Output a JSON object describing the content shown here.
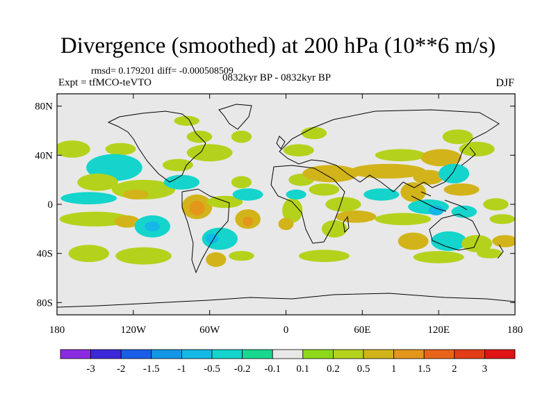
{
  "header": {
    "title": "Divergence (smoothed) at 200 hPa (10**6 m/s)",
    "stats": "rmsd= 0.179201 diff= -0.000508509",
    "experiment": "Expt = tfMCO-teVTO",
    "period": "0832kyr BP - 0832kyr BP",
    "season": "DJF"
  },
  "chart_data": {
    "type": "heatmap",
    "title": "Divergence (smoothed) at 200 hPa (10**6 m/s)",
    "xlabel": "",
    "ylabel": "",
    "xlim": [
      -180,
      180
    ],
    "ylim": [
      -90,
      90
    ],
    "x_ticks": [
      {
        "value": -180,
        "label": "180"
      },
      {
        "value": -120,
        "label": "120W"
      },
      {
        "value": -60,
        "label": "60W"
      },
      {
        "value": 0,
        "label": "0"
      },
      {
        "value": 60,
        "label": "60E"
      },
      {
        "value": 120,
        "label": "120E"
      },
      {
        "value": 180,
        "label": "180"
      }
    ],
    "y_ticks": [
      {
        "value": 80,
        "label": "80N"
      },
      {
        "value": 40,
        "label": "40N"
      },
      {
        "value": 0,
        "label": "0"
      },
      {
        "value": -40,
        "label": "40S"
      },
      {
        "value": -80,
        "label": "80S"
      }
    ],
    "colorbar": {
      "levels": [
        "-3",
        "-2",
        "-1.5",
        "-1",
        "-0.5",
        "-0.2",
        "-0.1",
        "0.1",
        "0.2",
        "0.5",
        "1",
        "1.5",
        "2",
        "3"
      ],
      "colors": [
        "#8a2be2",
        "#3c28d8",
        "#1a5ee8",
        "#1296e6",
        "#14b8e6",
        "#14d4cc",
        "#18d890",
        "#e8e8e8",
        "#8ed81c",
        "#b4d21c",
        "#d2b41a",
        "#e4961a",
        "#e8641a",
        "#e43c18",
        "#e01414"
      ]
    },
    "background_color": "#e8e8e8",
    "regions": [
      {
        "lon": -168,
        "lat": 45,
        "rx": 14,
        "ry": 7,
        "value": 0.2
      },
      {
        "lon": -130,
        "lat": 45,
        "rx": 12,
        "ry": 5,
        "value": 0.2
      },
      {
        "lon": -135,
        "lat": 30,
        "rx": 22,
        "ry": 11,
        "value": -0.5
      },
      {
        "lon": -148,
        "lat": 18,
        "rx": 16,
        "ry": 7,
        "value": 0.2
      },
      {
        "lon": -112,
        "lat": 12,
        "rx": 25,
        "ry": 8,
        "value": 0.2
      },
      {
        "lon": -118,
        "lat": 8,
        "rx": 10,
        "ry": 4,
        "value": 0.5
      },
      {
        "lon": -155,
        "lat": 5,
        "rx": 22,
        "ry": 5,
        "value": -0.5
      },
      {
        "lon": -150,
        "lat": -12,
        "rx": 28,
        "ry": 6,
        "value": 0.2
      },
      {
        "lon": -125,
        "lat": -14,
        "rx": 10,
        "ry": 5,
        "value": 0.5
      },
      {
        "lon": -105,
        "lat": -18,
        "rx": 14,
        "ry": 9,
        "value": -0.5
      },
      {
        "lon": -105,
        "lat": -18,
        "rx": 6,
        "ry": 4,
        "value": -1
      },
      {
        "lon": -155,
        "lat": -40,
        "rx": 16,
        "ry": 7,
        "value": 0.2
      },
      {
        "lon": -112,
        "lat": -42,
        "rx": 22,
        "ry": 7,
        "value": 0.2
      },
      {
        "lon": -70,
        "lat": -2,
        "rx": 12,
        "ry": 10,
        "value": 0.5
      },
      {
        "lon": -70,
        "lat": -3,
        "rx": 6,
        "ry": 6,
        "value": 1
      },
      {
        "lon": -82,
        "lat": 18,
        "rx": 14,
        "ry": 6,
        "value": -0.5
      },
      {
        "lon": -85,
        "lat": 32,
        "rx": 12,
        "ry": 5,
        "value": 0.2
      },
      {
        "lon": -60,
        "lat": 42,
        "rx": 18,
        "ry": 7,
        "value": 0.2
      },
      {
        "lon": -68,
        "lat": 55,
        "rx": 10,
        "ry": 5,
        "value": 0.2
      },
      {
        "lon": -35,
        "lat": 55,
        "rx": 8,
        "ry": 5,
        "value": 0.2
      },
      {
        "lon": -78,
        "lat": 68,
        "rx": 10,
        "ry": 4,
        "value": 0.2
      },
      {
        "lon": -48,
        "lat": 2,
        "rx": 14,
        "ry": 5,
        "value": 0.2
      },
      {
        "lon": -30,
        "lat": 8,
        "rx": 12,
        "ry": 5,
        "value": -0.5
      },
      {
        "lon": -30,
        "lat": -12,
        "rx": 10,
        "ry": 8,
        "value": 0.5
      },
      {
        "lon": -30,
        "lat": -14,
        "rx": 4,
        "ry": 4,
        "value": 1
      },
      {
        "lon": -52,
        "lat": -28,
        "rx": 14,
        "ry": 9,
        "value": -0.5
      },
      {
        "lon": -58,
        "lat": -28,
        "rx": 5,
        "ry": 4,
        "value": -1
      },
      {
        "lon": -55,
        "lat": -45,
        "rx": 8,
        "ry": 6,
        "value": 0.5
      },
      {
        "lon": -35,
        "lat": -42,
        "rx": 10,
        "ry": 4,
        "value": 0.2
      },
      {
        "lon": -35,
        "lat": 18,
        "rx": 8,
        "ry": 5,
        "value": 0.2
      },
      {
        "lon": 5,
        "lat": -5,
        "rx": 8,
        "ry": 10,
        "value": 0.2
      },
      {
        "lon": 0,
        "lat": -16,
        "rx": 6,
        "ry": 5,
        "value": 0.5
      },
      {
        "lon": 12,
        "lat": 20,
        "rx": 10,
        "ry": 5,
        "value": 0.2
      },
      {
        "lon": 8,
        "lat": 8,
        "rx": 8,
        "ry": 4,
        "value": -0.5
      },
      {
        "lon": 35,
        "lat": 25,
        "rx": 22,
        "ry": 7,
        "value": 0.5
      },
      {
        "lon": 30,
        "lat": 12,
        "rx": 12,
        "ry": 5,
        "value": 0.2
      },
      {
        "lon": 45,
        "lat": 0,
        "rx": 14,
        "ry": 6,
        "value": 0.2
      },
      {
        "lon": 55,
        "lat": -10,
        "rx": 16,
        "ry": 5,
        "value": 0.5
      },
      {
        "lon": 38,
        "lat": -20,
        "rx": 10,
        "ry": 7,
        "value": 0.2
      },
      {
        "lon": 30,
        "lat": -42,
        "rx": 20,
        "ry": 5,
        "value": 0.2
      },
      {
        "lon": 10,
        "lat": 44,
        "rx": 12,
        "ry": 5,
        "value": 0.2
      },
      {
        "lon": 22,
        "lat": 58,
        "rx": 10,
        "ry": 5,
        "value": 0.2
      },
      {
        "lon": 80,
        "lat": 27,
        "rx": 30,
        "ry": 6,
        "value": 0.5
      },
      {
        "lon": 90,
        "lat": 40,
        "rx": 20,
        "ry": 5,
        "value": 0.2
      },
      {
        "lon": 75,
        "lat": 8,
        "rx": 14,
        "ry": 5,
        "value": -0.5
      },
      {
        "lon": 100,
        "lat": 10,
        "rx": 10,
        "ry": 8,
        "value": 0.5
      },
      {
        "lon": 112,
        "lat": 22,
        "rx": 12,
        "ry": 6,
        "value": 0.5
      },
      {
        "lon": 122,
        "lat": 38,
        "rx": 16,
        "ry": 7,
        "value": 0.5
      },
      {
        "lon": 132,
        "lat": 25,
        "rx": 12,
        "ry": 8,
        "value": -0.5
      },
      {
        "lon": 138,
        "lat": 12,
        "rx": 14,
        "ry": 5,
        "value": 0.5
      },
      {
        "lon": 135,
        "lat": 55,
        "rx": 12,
        "ry": 6,
        "value": 0.2
      },
      {
        "lon": 150,
        "lat": 45,
        "rx": 14,
        "ry": 6,
        "value": 0.2
      },
      {
        "lon": 112,
        "lat": -2,
        "rx": 16,
        "ry": 6,
        "value": -0.5
      },
      {
        "lon": 118,
        "lat": -5,
        "rx": 6,
        "ry": 4,
        "value": -1
      },
      {
        "lon": 140,
        "lat": -6,
        "rx": 10,
        "ry": 5,
        "value": -0.5
      },
      {
        "lon": 165,
        "lat": 0,
        "rx": 10,
        "ry": 5,
        "value": 0.2
      },
      {
        "lon": 170,
        "lat": -12,
        "rx": 10,
        "ry": 4,
        "value": 0.2
      },
      {
        "lon": 92,
        "lat": -12,
        "rx": 22,
        "ry": 5,
        "value": 0.2
      },
      {
        "lon": 100,
        "lat": -30,
        "rx": 12,
        "ry": 7,
        "value": 0.5
      },
      {
        "lon": 128,
        "lat": -30,
        "rx": 14,
        "ry": 8,
        "value": -0.5
      },
      {
        "lon": 150,
        "lat": -32,
        "rx": 12,
        "ry": 7,
        "value": 0.2
      },
      {
        "lon": 172,
        "lat": -30,
        "rx": 10,
        "ry": 5,
        "value": 0.5
      },
      {
        "lon": 120,
        "lat": -43,
        "rx": 20,
        "ry": 5,
        "value": 0.2
      },
      {
        "lon": 160,
        "lat": -40,
        "rx": 10,
        "ry": 4,
        "value": 0.2
      }
    ]
  }
}
